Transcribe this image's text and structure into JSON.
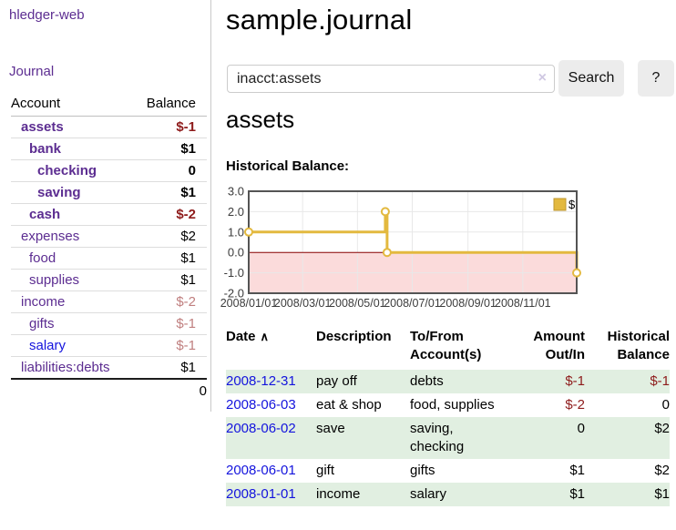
{
  "app": {
    "title": "hledger-web"
  },
  "sidebar": {
    "journal_link": "Journal",
    "accounts_table": {
      "headers": [
        "Account",
        "Balance"
      ],
      "rows": [
        {
          "name": "assets",
          "depth": 1,
          "bold": true,
          "name_color": "purple",
          "balance": "$-1",
          "balance_style": "neg-strong"
        },
        {
          "name": "bank",
          "depth": 2,
          "bold": true,
          "name_color": "purple",
          "balance": "$1",
          "balance_style": "pos"
        },
        {
          "name": "checking",
          "depth": 3,
          "bold": true,
          "name_color": "purple",
          "balance": "0",
          "balance_style": "pos"
        },
        {
          "name": "saving",
          "depth": 3,
          "bold": true,
          "name_color": "purple",
          "balance": "$1",
          "balance_style": "pos"
        },
        {
          "name": "cash",
          "depth": 2,
          "bold": true,
          "name_color": "purple",
          "balance": "$-2",
          "balance_style": "neg-strong"
        },
        {
          "name": "expenses",
          "depth": 1,
          "bold": false,
          "name_color": "purple",
          "balance": "$2",
          "balance_style": "pos"
        },
        {
          "name": "food",
          "depth": 2,
          "bold": false,
          "name_color": "purple",
          "balance": "$1",
          "balance_style": "pos"
        },
        {
          "name": "supplies",
          "depth": 2,
          "bold": false,
          "name_color": "purple",
          "balance": "$1",
          "balance_style": "pos"
        },
        {
          "name": "income",
          "depth": 1,
          "bold": false,
          "name_color": "purple",
          "balance": "$-2",
          "balance_style": "neg-soft"
        },
        {
          "name": "gifts",
          "depth": 2,
          "bold": false,
          "name_color": "purple",
          "balance": "$-1",
          "balance_style": "neg-soft"
        },
        {
          "name": "salary",
          "depth": 2,
          "bold": false,
          "name_color": "blue",
          "balance": "$-1",
          "balance_style": "neg-soft"
        },
        {
          "name": "liabilities:debts",
          "depth": 1,
          "bold": false,
          "name_color": "purple",
          "balance": "$1",
          "balance_style": "pos"
        }
      ],
      "total": "0"
    }
  },
  "main": {
    "title": "sample.journal",
    "search": {
      "value": "inacct:assets",
      "clear_icon": "×",
      "search_button": "Search",
      "help_button": "?"
    },
    "account_heading": "assets",
    "chart_label": "Historical Balance:"
  },
  "chart_data": {
    "type": "line",
    "step": true,
    "title": "Historical Balance:",
    "series": [
      {
        "name": "$",
        "points": [
          [
            "2008-01-01",
            1
          ],
          [
            "2008-06-01",
            2
          ],
          [
            "2008-06-03",
            0
          ],
          [
            "2008-12-31",
            -1
          ]
        ]
      }
    ],
    "xrange": [
      "2008-01-01",
      "2008-12-31"
    ],
    "ylim": [
      -2,
      3
    ],
    "y_ticks": [
      "3.0",
      "2.0",
      "1.0",
      "0.0",
      "-1.0",
      "-2.0"
    ],
    "x_ticks": [
      "2008/01/01",
      "2008/03/01",
      "2008/05/01",
      "2008/07/01",
      "2008/09/01",
      "2008/11/01"
    ],
    "legend": {
      "label": "$",
      "position": "top-right"
    },
    "negative_region_below": 0,
    "grid": true
  },
  "register_table": {
    "headers": [
      {
        "label": "Date",
        "align": "left",
        "sort_icon": "∧"
      },
      {
        "label": "Description",
        "align": "left"
      },
      {
        "label": "To/From\nAccount(s)",
        "align": "left"
      },
      {
        "label": "Amount\nOut/In",
        "align": "right"
      },
      {
        "label": "Historical\nBalance",
        "align": "right"
      }
    ],
    "rows": [
      {
        "date": "2008-12-31",
        "description": "pay off",
        "accounts": "debts",
        "amount": "$-1",
        "amount_neg": true,
        "balance": "$-1",
        "balance_neg": true
      },
      {
        "date": "2008-06-03",
        "description": "eat & shop",
        "accounts": "food, supplies",
        "amount": "$-2",
        "amount_neg": true,
        "balance": "0",
        "balance_neg": false
      },
      {
        "date": "2008-06-02",
        "description": "save",
        "accounts": "saving,\nchecking",
        "amount": "0",
        "amount_neg": false,
        "balance": "$2",
        "balance_neg": false
      },
      {
        "date": "2008-06-01",
        "description": "gift",
        "accounts": "gifts",
        "amount": "$1",
        "amount_neg": false,
        "balance": "$2",
        "balance_neg": false
      },
      {
        "date": "2008-01-01",
        "description": "income",
        "accounts": "salary",
        "amount": "$1",
        "amount_neg": false,
        "balance": "$1",
        "balance_neg": false
      }
    ]
  },
  "colors": {
    "link_purple": "#5c2d91",
    "link_blue": "#1414dd",
    "neg_strong": "#8e1b1b",
    "neg_soft": "#c07f7f",
    "row_green": "#e1efe1",
    "gold": "#e3b93f",
    "gold_border": "#bf982f",
    "pink": "#fbdbdb",
    "zero_line": "#8b0000",
    "chart_border": "#545454",
    "grid": "#e8e8e8",
    "axis_text": "#3c3c3c",
    "button_bg": "#ececec"
  }
}
